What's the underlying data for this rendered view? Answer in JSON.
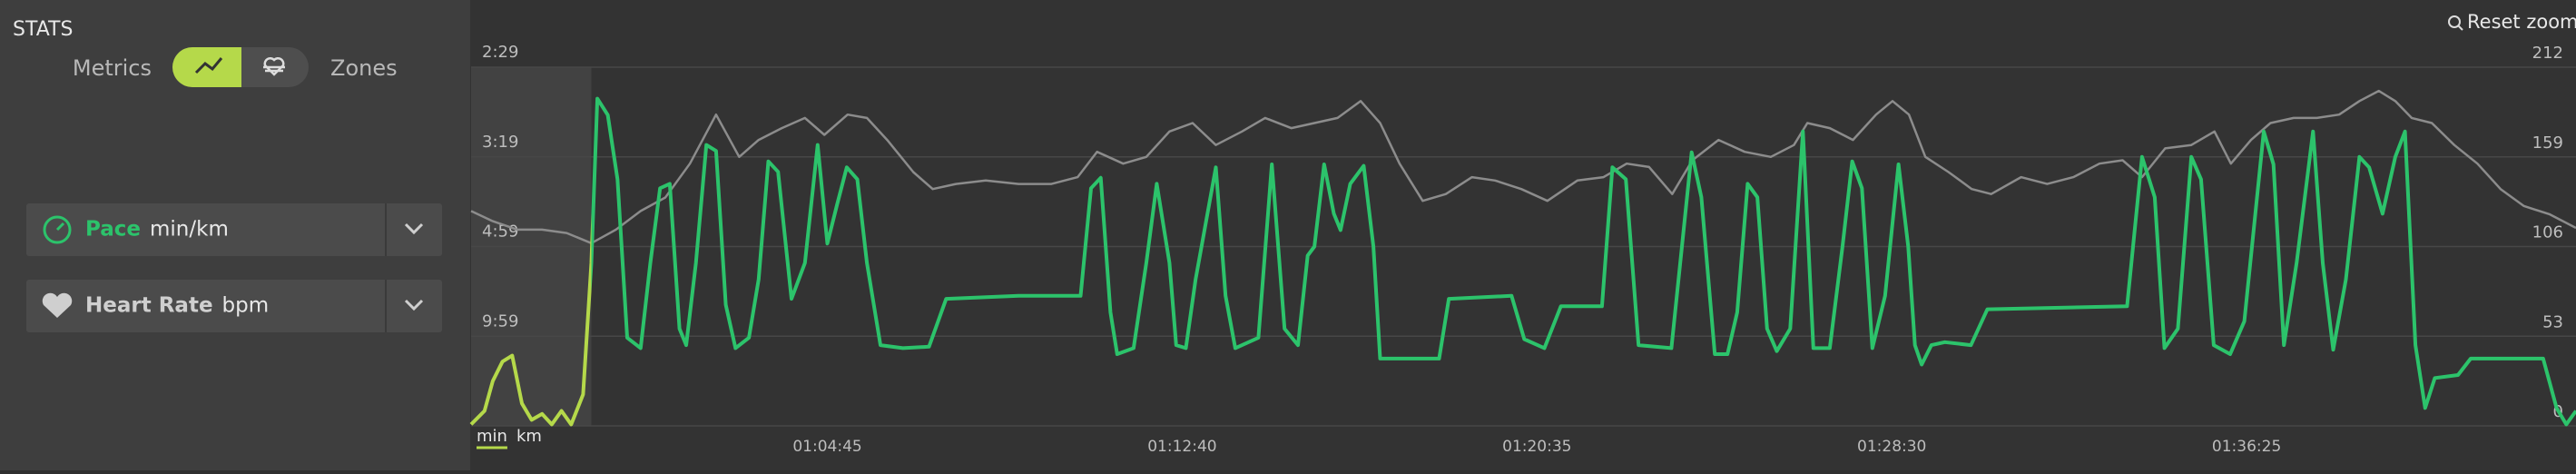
{
  "sidebar": {
    "title": "STATS",
    "toggle": {
      "left": "Metrics",
      "right": "Zones"
    }
  },
  "reset_zoom": "Reset zoom",
  "chart_data": {
    "type": "line",
    "xlim": [
      3408,
      6226
    ],
    "xticks": [
      {
        "value": 3885,
        "label": "01:04:45"
      },
      {
        "value": 4360,
        "label": "01:12:40"
      },
      {
        "value": 4835,
        "label": "01:20:35"
      },
      {
        "value": 5310,
        "label": "01:28:30"
      },
      {
        "value": 5785,
        "label": "01:36:25"
      }
    ],
    "ylim": [
      0,
      24
    ],
    "yticks": [
      {
        "value": 6,
        "label": "9:59"
      },
      {
        "value": 12,
        "label": "4:59"
      },
      {
        "value": 18,
        "label": "3:19"
      },
      {
        "value": 24,
        "label": "2:29"
      }
    ],
    "y_units": [
      "min",
      "km"
    ],
    "y2lim": [
      0,
      212
    ],
    "y2ticks": [
      0,
      53,
      106,
      159,
      212
    ],
    "grid": true,
    "selection": {
      "xlim": [
        3408,
        3569
      ],
      "color": "#b5d94a"
    },
    "series": [
      {
        "name": "Pace",
        "unit": "min/km",
        "color": "#2cc36b",
        "x": [
          3408,
          3426,
          3437,
          3450,
          3463,
          3476,
          3489,
          3503,
          3516,
          3529,
          3542,
          3558,
          3569,
          3577,
          3591,
          3604,
          3617,
          3635,
          3648,
          3661,
          3674,
          3687,
          3696,
          3709,
          3723,
          3736,
          3749,
          3762,
          3780,
          3793,
          3806,
          3819,
          3837,
          3855,
          3872,
          3885,
          3898,
          3911,
          3925,
          3938,
          3956,
          3986,
          4021,
          4044,
          4141,
          4224,
          4238,
          4251,
          4264,
          4273,
          4295,
          4312,
          4326,
          4343,
          4352,
          4365,
          4378,
          4405,
          4418,
          4431,
          4462,
          4480,
          4497,
          4515,
          4528,
          4537,
          4550,
          4563,
          4572,
          4585,
          4603,
          4616,
          4625,
          4704,
          4717,
          4801,
          4818,
          4845,
          4867,
          4922,
          4936,
          4954,
          4971,
          5015,
          5029,
          5042,
          5055,
          5073,
          5090,
          5103,
          5117,
          5130,
          5143,
          5156,
          5174,
          5191,
          5205,
          5227,
          5244,
          5257,
          5270,
          5284,
          5301,
          5319,
          5332,
          5341,
          5350,
          5363,
          5381,
          5416,
          5438,
          5625,
          5645,
          5662,
          5675,
          5693,
          5711,
          5724,
          5741,
          5763,
          5782,
          5808,
          5821,
          5835,
          5852,
          5874,
          5887,
          5901,
          5918,
          5936,
          5949,
          5967,
          5984,
          5997,
          6011,
          6024,
          6037,
          6068,
          6085,
          6182,
          6200,
          6213,
          6226
        ],
        "values": [
          0.1,
          1.0,
          3.0,
          4.3,
          4.7,
          1.5,
          0.4,
          0.8,
          0.1,
          1.0,
          0.1,
          2.1,
          10.9,
          21.9,
          20.8,
          16.5,
          5.9,
          5.2,
          10.9,
          15.9,
          16.2,
          6.5,
          5.4,
          10.9,
          18.8,
          18.4,
          8.1,
          5.2,
          5.9,
          9.8,
          17.7,
          17.0,
          8.5,
          10.9,
          18.8,
          12.2,
          14.8,
          17.3,
          16.5,
          10.9,
          5.4,
          5.2,
          5.3,
          8.5,
          8.7,
          8.7,
          15.9,
          16.6,
          7.6,
          4.8,
          5.2,
          10.9,
          16.2,
          10.9,
          5.4,
          5.2,
          9.8,
          17.3,
          8.7,
          5.2,
          5.9,
          17.5,
          6.5,
          5.4,
          11.4,
          12.0,
          17.5,
          14.2,
          13.1,
          16.2,
          17.4,
          12.0,
          4.5,
          4.5,
          8.5,
          8.7,
          5.8,
          5.2,
          8.0,
          8.0,
          17.3,
          16.5,
          5.4,
          5.2,
          12.0,
          18.3,
          15.3,
          4.8,
          4.8,
          7.6,
          16.2,
          15.3,
          6.5,
          5.0,
          6.5,
          19.7,
          5.2,
          5.2,
          12.0,
          17.7,
          15.9,
          5.2,
          8.7,
          17.5,
          12.0,
          5.4,
          4.1,
          5.4,
          5.6,
          5.4,
          7.8,
          8.0,
          18.0,
          15.3,
          5.2,
          6.5,
          18.0,
          16.5,
          5.4,
          4.8,
          7.0,
          19.7,
          17.5,
          5.4,
          10.9,
          19.7,
          10.9,
          5.1,
          9.8,
          18.0,
          17.3,
          14.2,
          18.0,
          19.7,
          5.4,
          1.2,
          3.2,
          3.4,
          4.5,
          4.5,
          1.2,
          0.1,
          1.0
        ]
      },
      {
        "name": "Heart Rate",
        "unit": "bpm",
        "color": "#8c8c8c",
        "axis": "y2",
        "x": [
          3408,
          3437,
          3470,
          3503,
          3536,
          3569,
          3602,
          3635,
          3668,
          3701,
          3736,
          3767,
          3793,
          3824,
          3855,
          3881,
          3912,
          3938,
          3965,
          4000,
          4026,
          4057,
          4097,
          4141,
          4185,
          4220,
          4246,
          4281,
          4312,
          4343,
          4374,
          4405,
          4440,
          4471,
          4506,
          4537,
          4568,
          4599,
          4625,
          4651,
          4682,
          4713,
          4748,
          4779,
          4814,
          4849,
          4889,
          4924,
          4955,
          4985,
          5016,
          5043,
          5078,
          5113,
          5148,
          5179,
          5197,
          5227,
          5258,
          5289,
          5311,
          5333,
          5355,
          5386,
          5417,
          5443,
          5483,
          5518,
          5553,
          5588,
          5619,
          5645,
          5676,
          5711,
          5742,
          5764,
          5791,
          5817,
          5848,
          5879,
          5909,
          5936,
          5962,
          5984,
          6006,
          6033,
          6063,
          6094,
          6125,
          6156,
          6191,
          6226
        ],
        "values": [
          127,
          121,
          116,
          116,
          114,
          108,
          116,
          127,
          135,
          155,
          184,
          159,
          169,
          176,
          182,
          172,
          184,
          182,
          169,
          150,
          140,
          143,
          145,
          143,
          143,
          147,
          162,
          155,
          159,
          174,
          179,
          166,
          174,
          182,
          176,
          179,
          182,
          192,
          179,
          155,
          133,
          137,
          147,
          145,
          140,
          133,
          145,
          147,
          155,
          153,
          137,
          157,
          169,
          162,
          159,
          166,
          179,
          176,
          169,
          184,
          192,
          184,
          159,
          150,
          140,
          137,
          147,
          143,
          147,
          155,
          157,
          147,
          164,
          166,
          174,
          155,
          169,
          179,
          182,
          182,
          184,
          192,
          198,
          192,
          182,
          179,
          166,
          155,
          140,
          130,
          125,
          117
        ]
      }
    ]
  }
}
